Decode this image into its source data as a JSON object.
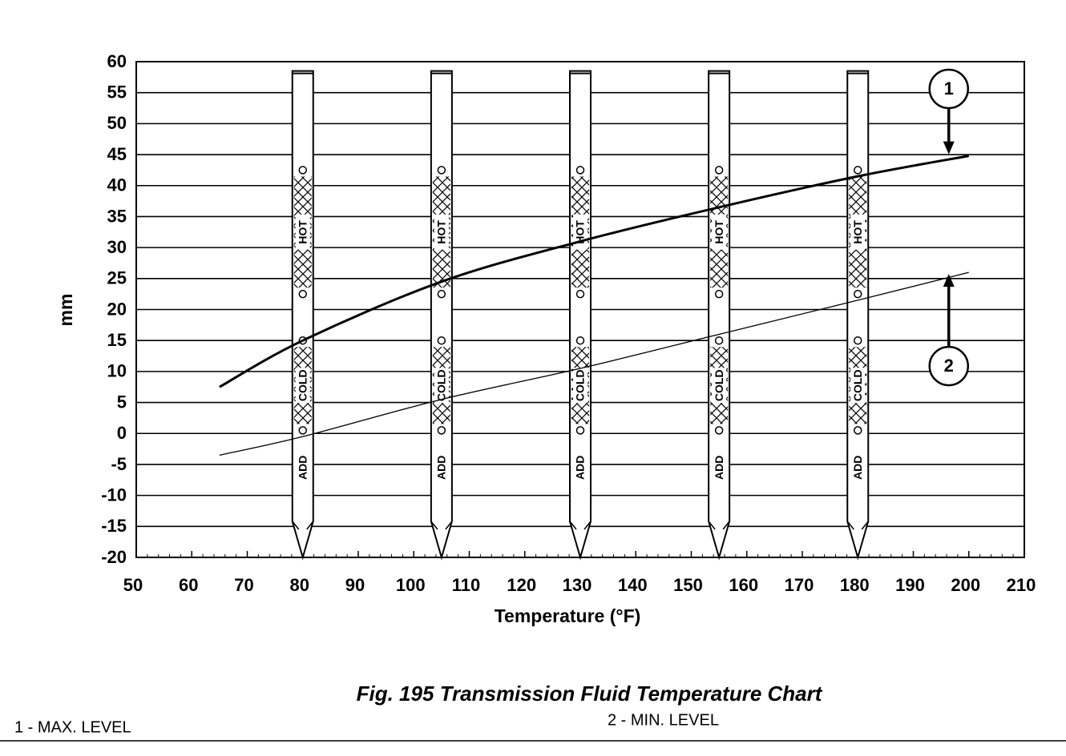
{
  "chart_data": {
    "type": "line",
    "x_label": "Temperature (°F)",
    "y_label": "mm",
    "x": [
      65,
      80,
      105,
      130,
      155,
      180,
      200
    ],
    "series": [
      {
        "name": "1",
        "color": "#000000",
        "values": [
          7.5,
          15,
          24.5,
          31,
          36.5,
          41.5,
          44.8
        ]
      },
      {
        "name": "2",
        "color": "#000000",
        "values": [
          -3.5,
          -0.5,
          5.5,
          10.5,
          16,
          21.5,
          26
        ]
      }
    ],
    "xlim": [
      50,
      210
    ],
    "xticks": [
      50,
      60,
      70,
      80,
      90,
      100,
      110,
      120,
      130,
      140,
      150,
      160,
      170,
      180,
      190,
      200,
      210
    ],
    "ylim": [
      -20,
      60
    ],
    "yticks": [
      60,
      55,
      50,
      45,
      40,
      35,
      30,
      25,
      20,
      15,
      10,
      5,
      0,
      -5,
      -10,
      -15,
      -20
    ],
    "grid": true,
    "dipsticks": {
      "x": [
        80,
        105,
        130,
        155,
        180
      ],
      "top": 58.5,
      "tip": -20,
      "hot": [
        22.5,
        42.5
      ],
      "cold": [
        0.5,
        15
      ],
      "hot_label": "HOT",
      "cold_label": "COLD",
      "add_label": "ADD"
    },
    "caption": "Fig. 195 Transmission Fluid Temperature Chart",
    "legend": [
      "1 - MAX. LEVEL",
      "2 - MIN. LEVEL"
    ]
  }
}
